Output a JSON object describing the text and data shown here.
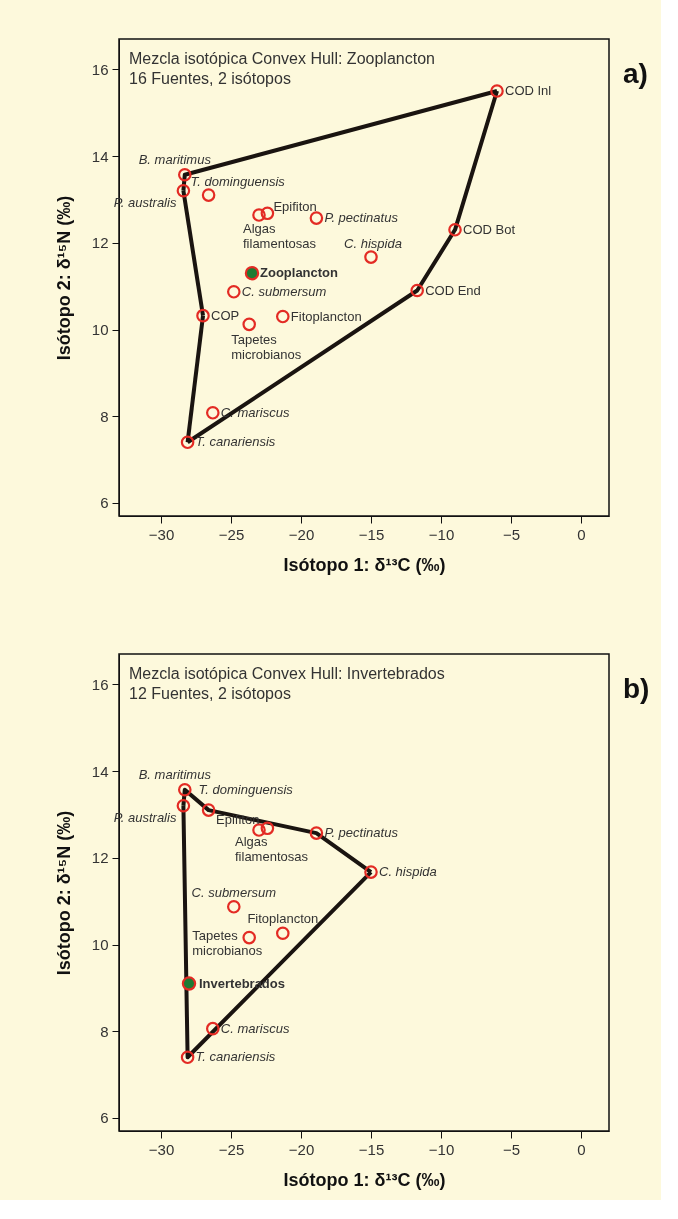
{
  "chart_data": [
    {
      "type": "scatter",
      "title": "Mezcla isotópica Convex Hull: Zooplancton",
      "subtitle": "16 Fuentes, 2 isótopos",
      "xlabel": "Isótopo 1: δ¹³C (‰)",
      "ylabel": "Isótopo 2: δ¹⁵N (‰)",
      "xlim": [
        -33,
        2
      ],
      "ylim": [
        5.7,
        16.7
      ],
      "xticks": [
        -30,
        -25,
        -20,
        -15,
        -10,
        -5,
        0
      ],
      "yticks": [
        6,
        8,
        10,
        12,
        14,
        16
      ],
      "grid": false,
      "series": [
        {
          "type": "line",
          "marker": "none",
          "color": "#1a1410",
          "x": [
            -28.4,
            -28.3,
            -6.0
          ],
          "values": [
            13.2,
            13.57,
            15.5
          ]
        },
        {
          "type": "line",
          "marker": "none",
          "color": "#1a1410",
          "x": [
            -28.4,
            -27.0
          ],
          "values": [
            13.2,
            10.32
          ]
        },
        {
          "type": "line",
          "marker": "none",
          "color": "#1a1410",
          "x": [
            -28.1,
            -27.0
          ],
          "values": [
            7.4,
            10.32
          ]
        },
        {
          "type": "line",
          "marker": "none",
          "color": "#1a1410",
          "x": [
            -28.1,
            -11.7,
            -9.0,
            -6.0
          ],
          "values": [
            7.4,
            10.9,
            12.3,
            15.5
          ]
        },
        {
          "marker": "circle",
          "color": "#e32b24",
          "x": [
            -28.3,
            -28.4,
            -26.6,
            -22.4,
            -23.0,
            -18.9,
            -15.0,
            -24.8,
            -27.0,
            -23.7,
            -21.3,
            -26.3,
            -28.1,
            -6.0,
            -9.0,
            -11.7
          ],
          "values": [
            13.57,
            13.2,
            13.1,
            12.68,
            12.64,
            12.57,
            11.67,
            10.87,
            10.32,
            10.12,
            10.3,
            8.08,
            7.4,
            15.5,
            12.3,
            10.9
          ]
        },
        {
          "marker": "circle",
          "color": "#1e7b34",
          "x": [
            -23.5
          ],
          "values": [
            11.3
          ]
        }
      ],
      "annotations": [
        "a)",
        {
          "text": "B. maritimus",
          "x": -28.3,
          "y": 13.57
        },
        {
          "text": "T. dominguensis",
          "x": -26.6,
          "y": 13.1
        },
        {
          "text": "P. australis",
          "x": -28.4,
          "y": 13.2
        },
        {
          "text": "Epifiton",
          "x": -22.4,
          "y": 12.68
        },
        {
          "text": "Algas\nfilamentosas",
          "x": -23.0,
          "y": 12.64
        },
        {
          "text": "P. pectinatus",
          "x": -18.9,
          "y": 12.57
        },
        {
          "text": "C. hispida",
          "x": -15.0,
          "y": 11.67
        },
        {
          "text": "Zooplancton",
          "x": -23.5,
          "y": 11.3
        },
        {
          "text": "C. submersum",
          "x": -24.8,
          "y": 10.87
        },
        {
          "text": "COP",
          "x": -27.0,
          "y": 10.32
        },
        {
          "text": "Tapetes\nmicrobianos",
          "x": -23.7,
          "y": 10.12
        },
        {
          "text": "Fitoplancton",
          "x": -21.3,
          "y": 10.3
        },
        {
          "text": "C. mariscus",
          "x": -26.3,
          "y": 8.08
        },
        {
          "text": "T. canariensis",
          "x": -28.1,
          "y": 7.4
        },
        {
          "text": "COD Inl",
          "x": -6.0,
          "y": 15.5
        },
        {
          "text": "COD Bot",
          "x": -9.0,
          "y": 12.3
        },
        {
          "text": "COD End",
          "x": -11.7,
          "y": 10.9
        }
      ]
    },
    {
      "type": "scatter",
      "title": "Mezcla isotópica Convex Hull: Invertebrados",
      "subtitle": "12 Fuentes, 2 isótopos",
      "xlabel": "Isótopo 1: δ¹³C (‰)",
      "ylabel": "Isótopo 2: δ¹⁵N (‰)",
      "xlim": [
        -33,
        2
      ],
      "ylim": [
        5.7,
        16.7
      ],
      "xticks": [
        -30,
        -25,
        -20,
        -15,
        -10,
        -5,
        0
      ],
      "yticks": [
        6,
        8,
        10,
        12,
        14,
        16
      ],
      "grid": false,
      "series": [
        {
          "type": "line",
          "marker": "none",
          "color": "#1a1410",
          "x": [
            -28.4,
            -28.3,
            -26.6,
            -18.9,
            -15.0
          ],
          "values": [
            13.2,
            13.57,
            13.1,
            12.57,
            11.67
          ]
        },
        {
          "type": "line",
          "marker": "none",
          "color": "#1a1410",
          "x": [
            -28.4,
            -28.1,
            -15.0
          ],
          "values": [
            13.2,
            7.4,
            11.67
          ]
        },
        {
          "marker": "circle",
          "color": "#e32b24",
          "x": [
            -28.3,
            -28.4,
            -26.6,
            -22.4,
            -23.0,
            -18.9,
            -15.0,
            -24.8,
            -23.7,
            -21.3,
            -26.3,
            -28.1
          ],
          "values": [
            13.57,
            13.2,
            13.1,
            12.68,
            12.64,
            12.57,
            11.67,
            10.87,
            10.16,
            10.26,
            8.06,
            7.4
          ]
        },
        {
          "marker": "circle",
          "color": "#1e7b34",
          "x": [
            -28.0
          ],
          "values": [
            9.1
          ]
        }
      ],
      "annotations": [
        "b)",
        {
          "text": "B. maritimus",
          "x": -28.3,
          "y": 13.57
        },
        {
          "text": "T. dominguensis",
          "x": -26.6,
          "y": 13.1
        },
        {
          "text": "P. australis",
          "x": -28.4,
          "y": 13.2
        },
        {
          "text": "Epifiton",
          "x": -22.4,
          "y": 12.68
        },
        {
          "text": "Algas\nfilamentosas",
          "x": -23.0,
          "y": 12.64
        },
        {
          "text": "P. pectinatus",
          "x": -18.9,
          "y": 12.57
        },
        {
          "text": "C. hispida",
          "x": -15.0,
          "y": 11.67
        },
        {
          "text": "C. submersum",
          "x": -24.8,
          "y": 10.87
        },
        {
          "text": "Fitoplancton",
          "x": -21.3,
          "y": 10.26
        },
        {
          "text": "Tapetes\nmicrobianos",
          "x": -23.7,
          "y": 10.16
        },
        {
          "text": "Invertebrados",
          "x": -28.0,
          "y": 9.1
        },
        {
          "text": "C. mariscus",
          "x": -26.3,
          "y": 8.06
        },
        {
          "text": "T. canariensis",
          "x": -28.1,
          "y": 7.4
        }
      ]
    }
  ]
}
